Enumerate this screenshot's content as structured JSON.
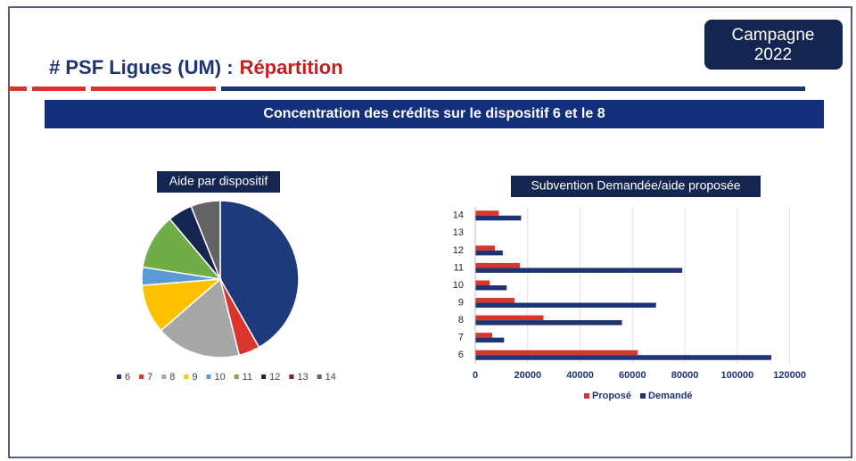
{
  "header": {
    "title_prefix": "# PSF Ligues (UM) :",
    "title_highlight": "Répartition",
    "badge": [
      "Campagne",
      "2022"
    ],
    "banner": "Concentration des crédits sur le dispositif 6 et le 8"
  },
  "chart_data": [
    {
      "type": "pie",
      "title": "Aide par dispositif",
      "categories": [
        "6",
        "7",
        "8",
        "9",
        "10",
        "11",
        "12",
        "13",
        "14"
      ],
      "values": [
        62000,
        6500,
        26000,
        15000,
        5500,
        17000,
        7500,
        0,
        9000
      ],
      "colors": [
        "#1f3a7a",
        "#d9352a",
        "#a6a6a6",
        "#ffc000",
        "#5b9bd5",
        "#70ad47",
        "#14254f",
        "#7b1f1f",
        "#636363"
      ],
      "legend": "bottom"
    },
    {
      "type": "hbar",
      "title": "Subvention Demandée/aide proposée",
      "categories": [
        "6",
        "7",
        "8",
        "9",
        "10",
        "11",
        "12",
        "13",
        "14"
      ],
      "series": [
        {
          "name": "Proposé",
          "color": "#d9352a",
          "values": [
            62000,
            6500,
            26000,
            15000,
            5500,
            17000,
            7500,
            0,
            9000
          ]
        },
        {
          "name": "Demandé",
          "color": "#1f3473",
          "values": [
            113000,
            11000,
            56000,
            69000,
            12000,
            79000,
            10500,
            0,
            17500
          ]
        }
      ],
      "xlim": [
        0,
        130000
      ],
      "xticks": [
        0,
        20000,
        40000,
        60000,
        80000,
        100000,
        120000
      ],
      "grid": true,
      "legend": "bottom"
    }
  ]
}
